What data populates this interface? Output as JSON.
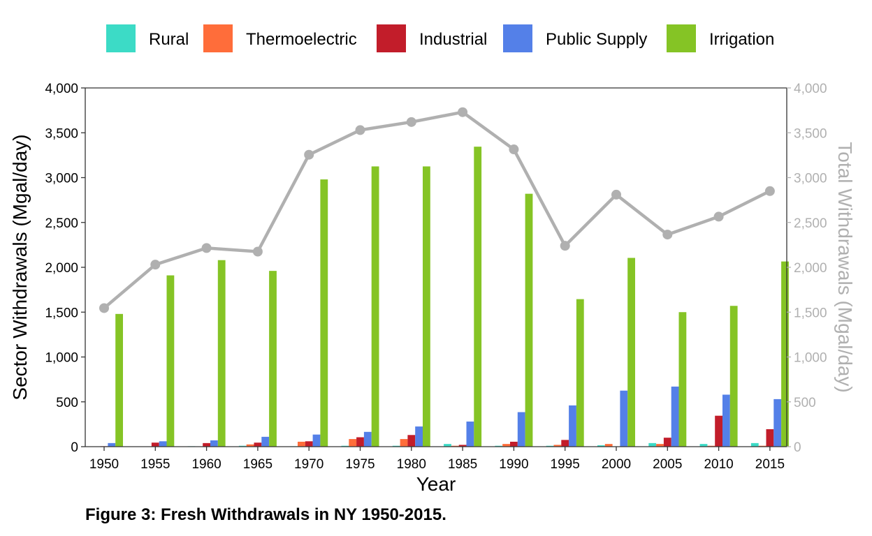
{
  "chart_data": {
    "type": "bar",
    "caption": "Figure 3: Fresh Withdrawals in NY 1950-2015.",
    "xlabel": "Year",
    "ylabel": "Sector Withdrawals (Mgal/day)",
    "y2label": "Total Withdrawals (Mgal/day)",
    "ylim": [
      0,
      4000
    ],
    "y2lim": [
      0,
      4000
    ],
    "yticks": [
      "0",
      "500",
      "1,000",
      "1,500",
      "2,000",
      "2,500",
      "3,000",
      "3,500",
      "4,000"
    ],
    "ytick_values": [
      0,
      500,
      1000,
      1500,
      2000,
      2500,
      3000,
      3500,
      4000
    ],
    "legend_position": "top",
    "grid": false,
    "categories": [
      "1950",
      "1955",
      "1960",
      "1965",
      "1970",
      "1975",
      "1980",
      "1985",
      "1990",
      "1995",
      "2000",
      "2005",
      "2010",
      "2015"
    ],
    "series": [
      {
        "name": "Rural",
        "color": "#3CDBC6",
        "values": [
          0,
          0,
          5,
          10,
          5,
          10,
          10,
          30,
          10,
          10,
          15,
          40,
          30,
          40
        ]
      },
      {
        "name": "Thermoelectric",
        "color": "#FF6D3A",
        "values": [
          0,
          0,
          0,
          25,
          55,
          85,
          85,
          10,
          30,
          20,
          30,
          30,
          10,
          10
        ]
      },
      {
        "name": "Industrial",
        "color": "#C21D2A",
        "values": [
          5,
          45,
          40,
          45,
          60,
          105,
          130,
          20,
          55,
          75,
          0,
          100,
          345,
          195
        ]
      },
      {
        "name": "Public Supply",
        "color": "#5480E8",
        "values": [
          40,
          60,
          70,
          110,
          135,
          165,
          225,
          280,
          385,
          460,
          625,
          670,
          580,
          530
        ]
      },
      {
        "name": "Irrigation",
        "color": "#85C425",
        "values": [
          1480,
          1910,
          2080,
          1960,
          2980,
          3125,
          3125,
          3345,
          2820,
          1645,
          2105,
          1500,
          1570,
          2065
        ]
      }
    ],
    "total": {
      "name": "Total",
      "color": "#B0B0B0",
      "values": [
        1545,
        2030,
        2215,
        2175,
        3255,
        3530,
        3620,
        3730,
        3315,
        2240,
        2810,
        2365,
        2565,
        2850
      ]
    }
  }
}
